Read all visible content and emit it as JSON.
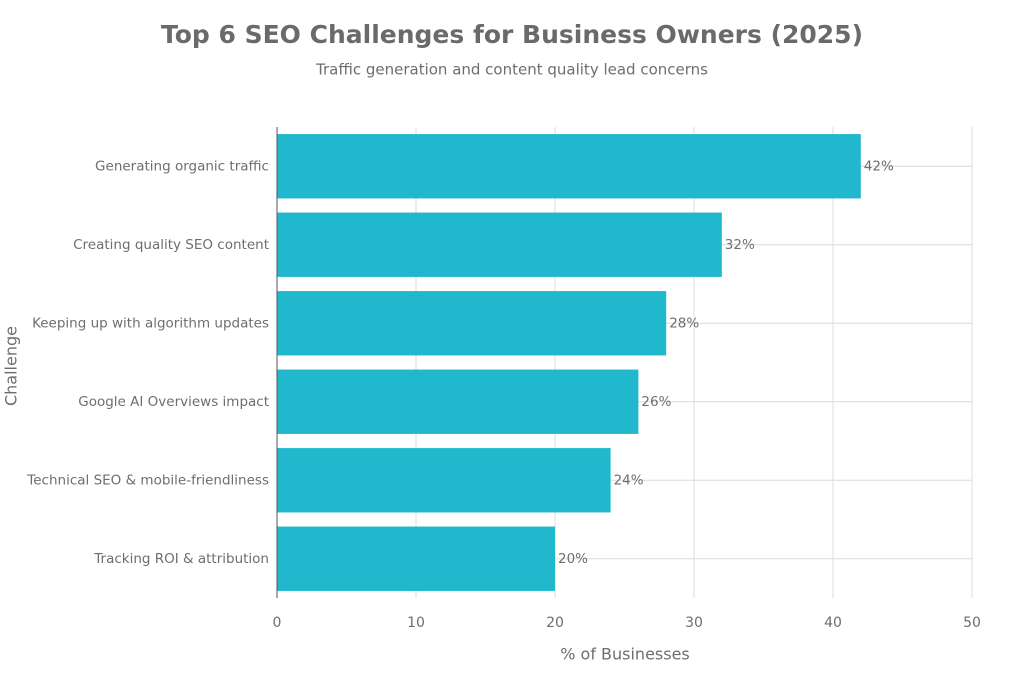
{
  "chart_data": {
    "type": "bar",
    "orientation": "horizontal",
    "title": "Top 6 SEO Challenges for Business Owners (2025)",
    "subtitle": "Traffic generation and content quality lead concerns",
    "x_label": "% of Businesses",
    "y_label": "Challenge",
    "categories": [
      "Generating organic traffic",
      "Creating quality SEO content",
      "Keeping up with algorithm updates",
      "Google AI Overviews impact",
      "Technical SEO & mobile-friendliness",
      "Tracking ROI & attribution"
    ],
    "values": [
      42,
      32,
      28,
      26,
      24,
      20
    ],
    "value_labels": [
      "42%",
      "32%",
      "28%",
      "26%",
      "24%",
      "20%"
    ],
    "color": "#21b8cd",
    "xlim": [
      0,
      50
    ],
    "xticks": [
      0,
      10,
      20,
      30,
      40,
      50
    ],
    "grid": true
  }
}
